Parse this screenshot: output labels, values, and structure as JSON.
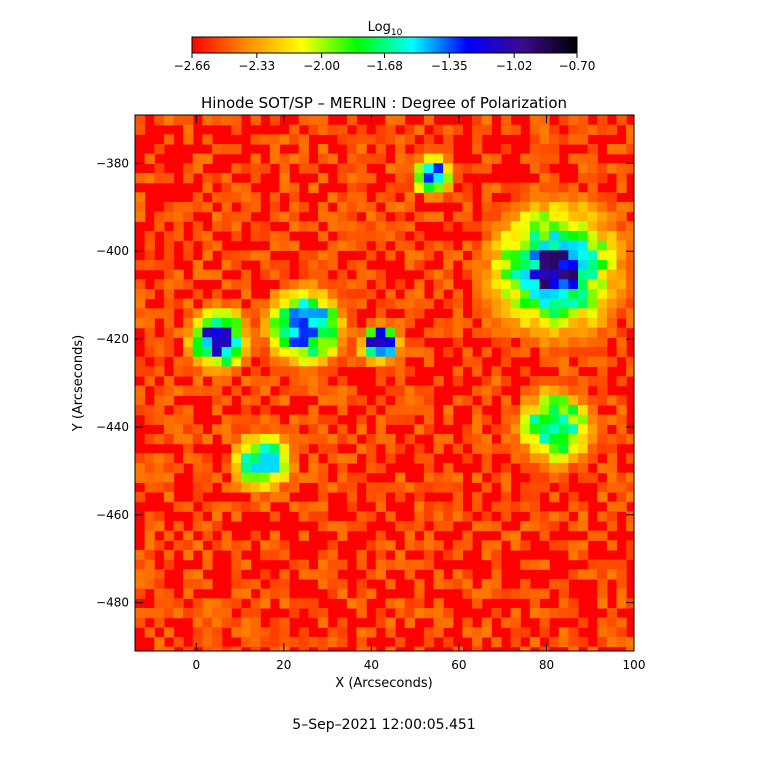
{
  "chart_data": {
    "type": "heatmap",
    "title": "Hinode SOT/SP – MERLIN : Degree of Polarization",
    "xlabel": "X (Arcseconds)",
    "ylabel": "Y (Arcseconds)",
    "xlim": [
      -14,
      100
    ],
    "ylim": [
      -491,
      -369
    ],
    "x_ticks": [
      0,
      20,
      40,
      60,
      80,
      100
    ],
    "y_ticks": [
      -380,
      -400,
      -420,
      -440,
      -460,
      -480
    ],
    "grid": false,
    "colorbar": {
      "label_main": "Log",
      "label_sub": "10",
      "range": [
        -2.66,
        -0.7
      ],
      "ticks": [
        -2.66,
        -2.33,
        -2.0,
        -1.68,
        -1.35,
        -1.02,
        -0.7
      ],
      "tick_labels": [
        "−2.66",
        "−2.33",
        "−2.00",
        "−1.68",
        "−1.35",
        "−1.02",
        "−0.70"
      ],
      "colormap": [
        "#ff0000",
        "#ff8c00",
        "#ffff00",
        "#00ff00",
        "#00ffff",
        "#0000ff",
        "#3a0b8e",
        "#000000"
      ]
    },
    "features": [
      {
        "kind": "sunspot",
        "center": [
          82,
          -404
        ],
        "radius": 8,
        "value": -0.9
      },
      {
        "kind": "penumbra",
        "center": [
          82,
          -404
        ],
        "radius": 14,
        "value": -1.5
      },
      {
        "kind": "plage",
        "center": [
          5,
          -420
        ],
        "radius": 6,
        "value": -1.1
      },
      {
        "kind": "plage",
        "center": [
          25,
          -417
        ],
        "radius": 8,
        "value": -1.3
      },
      {
        "kind": "plage",
        "center": [
          42,
          -421
        ],
        "radius": 4,
        "value": -1.1
      },
      {
        "kind": "plage",
        "center": [
          15,
          -448
        ],
        "radius": 6,
        "value": -1.5
      },
      {
        "kind": "plage",
        "center": [
          82,
          -440
        ],
        "radius": 8,
        "value": -1.6
      },
      {
        "kind": "plage",
        "center": [
          54,
          -383
        ],
        "radius": 4,
        "value": -1.3
      }
    ],
    "timestamp": "5–Sep–2021 12:00:05.451"
  }
}
